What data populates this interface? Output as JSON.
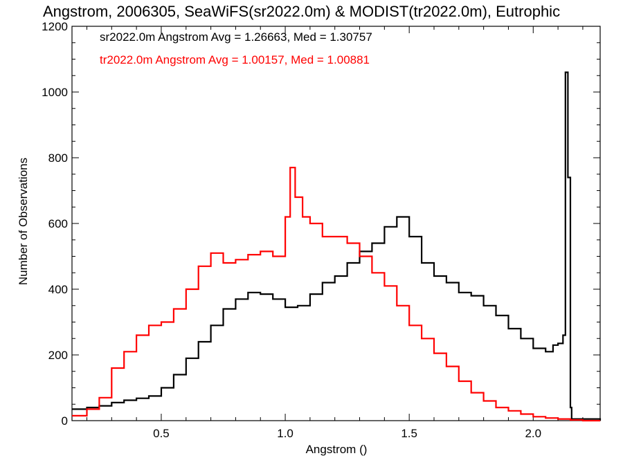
{
  "chart_data": {
    "type": "line",
    "title": "Angstrom, 2006305, SeaWiFS(sr2022.0m) & MODIST(tr2022.0m), Eutrophic",
    "xlabel": "Angstrom ()",
    "ylabel": "Number of Observations",
    "xlim": [
      0.14,
      2.27
    ],
    "ylim": [
      0,
      1200
    ],
    "x_ticks": [
      0.5,
      1.0,
      1.5,
      2.0
    ],
    "x_tick_labels": [
      "0.5",
      "1.0",
      "1.5",
      "2.0"
    ],
    "y_ticks": [
      0,
      200,
      400,
      600,
      800,
      1000,
      1200
    ],
    "y_tick_labels": [
      "0",
      "200",
      "400",
      "600",
      "800",
      "1000",
      "1200"
    ],
    "legend_position": "top-left",
    "series": [
      {
        "name": "sr2022.0m",
        "legend": "sr2022.0m Angstrom Avg = 1.26663, Med = 1.30757",
        "color": "#000000",
        "style": "step",
        "points": [
          [
            0.14,
            35
          ],
          [
            0.2,
            40
          ],
          [
            0.25,
            45
          ],
          [
            0.3,
            55
          ],
          [
            0.35,
            62
          ],
          [
            0.4,
            68
          ],
          [
            0.45,
            75
          ],
          [
            0.5,
            100
          ],
          [
            0.55,
            140
          ],
          [
            0.6,
            190
          ],
          [
            0.65,
            240
          ],
          [
            0.7,
            290
          ],
          [
            0.75,
            340
          ],
          [
            0.8,
            370
          ],
          [
            0.85,
            390
          ],
          [
            0.9,
            385
          ],
          [
            0.95,
            370
          ],
          [
            1.0,
            345
          ],
          [
            1.05,
            350
          ],
          [
            1.1,
            385
          ],
          [
            1.15,
            420
          ],
          [
            1.2,
            440
          ],
          [
            1.25,
            480
          ],
          [
            1.3,
            515
          ],
          [
            1.35,
            540
          ],
          [
            1.4,
            590
          ],
          [
            1.45,
            620
          ],
          [
            1.5,
            560
          ],
          [
            1.55,
            480
          ],
          [
            1.6,
            440
          ],
          [
            1.65,
            420
          ],
          [
            1.7,
            390
          ],
          [
            1.75,
            380
          ],
          [
            1.8,
            350
          ],
          [
            1.85,
            320
          ],
          [
            1.9,
            280
          ],
          [
            1.95,
            250
          ],
          [
            2.0,
            220
          ],
          [
            2.05,
            210
          ],
          [
            2.08,
            230
          ],
          [
            2.1,
            235
          ],
          [
            2.12,
            260
          ],
          [
            2.13,
            1060
          ],
          [
            2.14,
            740
          ],
          [
            2.15,
            40
          ],
          [
            2.155,
            5
          ],
          [
            2.27,
            0
          ]
        ]
      },
      {
        "name": "tr2022.0m",
        "legend": "tr2022.0m Angstrom Avg = 1.00157, Med = 1.00881",
        "color": "#ff0000",
        "style": "step",
        "points": [
          [
            0.14,
            15
          ],
          [
            0.2,
            35
          ],
          [
            0.25,
            70
          ],
          [
            0.3,
            160
          ],
          [
            0.35,
            210
          ],
          [
            0.4,
            260
          ],
          [
            0.45,
            290
          ],
          [
            0.5,
            300
          ],
          [
            0.55,
            340
          ],
          [
            0.6,
            400
          ],
          [
            0.65,
            470
          ],
          [
            0.7,
            510
          ],
          [
            0.75,
            480
          ],
          [
            0.8,
            490
          ],
          [
            0.85,
            505
          ],
          [
            0.9,
            515
          ],
          [
            0.95,
            500
          ],
          [
            1.0,
            620
          ],
          [
            1.02,
            770
          ],
          [
            1.04,
            680
          ],
          [
            1.07,
            620
          ],
          [
            1.1,
            600
          ],
          [
            1.15,
            560
          ],
          [
            1.2,
            560
          ],
          [
            1.25,
            540
          ],
          [
            1.3,
            500
          ],
          [
            1.35,
            450
          ],
          [
            1.4,
            410
          ],
          [
            1.45,
            350
          ],
          [
            1.5,
            290
          ],
          [
            1.55,
            250
          ],
          [
            1.6,
            205
          ],
          [
            1.65,
            165
          ],
          [
            1.7,
            120
          ],
          [
            1.75,
            85
          ],
          [
            1.8,
            60
          ],
          [
            1.85,
            40
          ],
          [
            1.9,
            30
          ],
          [
            1.95,
            20
          ],
          [
            2.0,
            12
          ],
          [
            2.05,
            8
          ],
          [
            2.1,
            5
          ],
          [
            2.15,
            2
          ],
          [
            2.2,
            0
          ],
          [
            2.27,
            0
          ]
        ]
      }
    ]
  }
}
